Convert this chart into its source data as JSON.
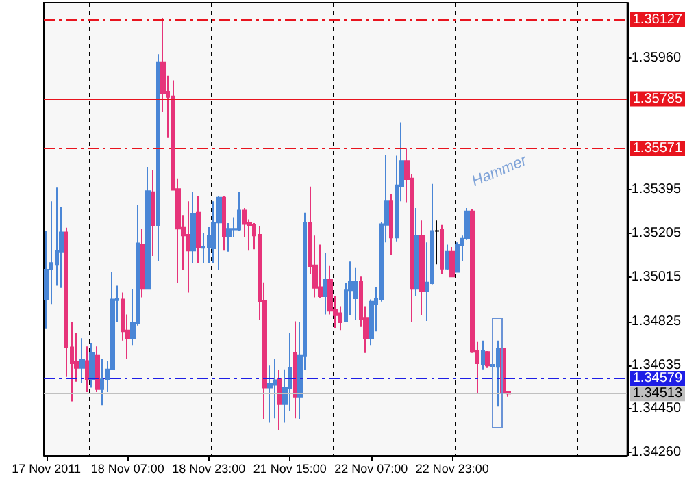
{
  "chart_data": {
    "type": "candlestick",
    "categories": [
      "17 Nov 2011",
      null,
      null,
      null,
      null,
      null,
      null,
      null,
      null,
      null,
      null,
      null,
      null,
      null,
      null,
      null,
      "18 Nov 07:00",
      null,
      null,
      null,
      null,
      null,
      null,
      null,
      null,
      null,
      null,
      null,
      null,
      null,
      null,
      null,
      "18 Nov 23:00",
      null,
      null,
      null,
      null,
      null,
      null,
      null,
      null,
      null,
      null,
      null,
      null,
      null,
      null,
      null,
      "21 Nov 15:00",
      null,
      null,
      null,
      null,
      null,
      null,
      null,
      null,
      null,
      null,
      null,
      null,
      null,
      null,
      null,
      "22 Nov 07:00",
      null,
      null,
      null,
      null,
      null,
      null,
      null,
      null,
      null,
      null,
      null,
      null,
      null,
      null,
      null,
      "22 Nov 23:00",
      null,
      null,
      null,
      null,
      null,
      null,
      null,
      null,
      null,
      null,
      null,
      null,
      null,
      null,
      null,
      null,
      null,
      null,
      null,
      null,
      null,
      null,
      null,
      null,
      null,
      null,
      null,
      null,
      null,
      null,
      null,
      null,
      null,
      null
    ],
    "ohlc": [
      [
        1.3492,
        1.35215,
        1.34792,
        1.35048
      ],
      [
        1.35048,
        1.35343,
        1.349,
        1.35077
      ],
      [
        1.35071,
        1.35402,
        1.34979,
        1.3513
      ],
      [
        1.35126,
        1.35318,
        1.34969,
        1.35209
      ],
      [
        1.35209,
        1.35229,
        1.34585,
        1.34713
      ],
      [
        1.34713,
        1.34821,
        1.3448,
        1.34644
      ],
      [
        1.3465,
        1.34776,
        1.34565,
        1.34624
      ],
      [
        1.34624,
        1.34752,
        1.34559,
        1.3466
      ],
      [
        1.34654,
        1.34717,
        1.3452,
        1.34575
      ],
      [
        1.34575,
        1.34732,
        1.34539,
        1.34689
      ],
      [
        1.34677,
        1.34717,
        1.3452,
        1.34532
      ],
      [
        1.34532,
        1.34664,
        1.34463,
        1.34575
      ],
      [
        1.34575,
        1.34654,
        1.3452,
        1.34618
      ],
      [
        1.34618,
        1.35038,
        1.34614,
        1.3492
      ],
      [
        1.34916,
        1.34979,
        1.34821,
        1.34924
      ],
      [
        1.3492,
        1.34949,
        1.34742,
        1.34782
      ],
      [
        1.34786,
        1.34855,
        1.34664,
        1.34752
      ],
      [
        1.34752,
        1.34965,
        1.34723,
        1.34821
      ],
      [
        1.34815,
        1.35327,
        1.34807,
        1.35162
      ],
      [
        1.35156,
        1.35225,
        1.34929,
        1.34965
      ],
      [
        1.34965,
        1.35491,
        1.34965,
        1.35387
      ],
      [
        1.35383,
        1.35477,
        1.35107,
        1.35239
      ],
      [
        1.35239,
        1.35978,
        1.35087,
        1.35944
      ],
      [
        1.35944,
        1.36135,
        1.35728,
        1.3581
      ],
      [
        1.35816,
        1.35885,
        1.35619,
        1.35793
      ],
      [
        1.35796,
        1.35865,
        1.35392,
        1.35392
      ],
      [
        1.35396,
        1.35442,
        1.34989,
        1.35225
      ],
      [
        1.35229,
        1.35284,
        1.35048,
        1.35195
      ],
      [
        1.35199,
        1.35343,
        1.34949,
        1.3513
      ],
      [
        1.3513,
        1.35383,
        1.35077,
        1.35288
      ],
      [
        1.35294,
        1.35367,
        1.35077,
        1.35146
      ],
      [
        1.35142,
        1.35205,
        1.35077,
        1.35146
      ],
      [
        1.35146,
        1.35231,
        1.35077,
        1.35195
      ],
      [
        1.3514,
        1.35343,
        1.35077,
        1.35251
      ],
      [
        1.35251,
        1.35367,
        1.35048,
        1.35359
      ],
      [
        1.35359,
        1.35367,
        1.3513,
        1.3519
      ],
      [
        1.3519,
        1.35249,
        1.35126,
        1.35225
      ],
      [
        1.35221,
        1.35274,
        1.3519,
        1.35225
      ],
      [
        1.35221,
        1.35383,
        1.35215,
        1.35304
      ],
      [
        1.35304,
        1.35314,
        1.3519,
        1.35245
      ],
      [
        1.35249,
        1.35265,
        1.3513,
        1.35239
      ],
      [
        1.35241,
        1.35249,
        1.35136,
        1.35195
      ],
      [
        1.35199,
        1.35235,
        1.34831,
        1.3491
      ],
      [
        1.34914,
        1.34993,
        1.34402,
        1.34539
      ],
      [
        1.34539,
        1.34634,
        1.34388,
        1.34555
      ],
      [
        1.34551,
        1.34664,
        1.34407,
        1.34571
      ],
      [
        1.34579,
        1.34614,
        1.34354,
        1.34467
      ],
      [
        1.34467,
        1.34618,
        1.34388,
        1.34539
      ],
      [
        1.34535,
        1.34776,
        1.34437,
        1.34624
      ],
      [
        1.34689,
        1.34825,
        1.34407,
        1.345
      ],
      [
        1.345,
        1.34821,
        1.34402,
        1.34677
      ],
      [
        1.34677,
        1.35294,
        1.34614,
        1.35251
      ],
      [
        1.35251,
        1.35406,
        1.35028,
        1.35063
      ],
      [
        1.35067,
        1.35195,
        1.34929,
        1.34969
      ],
      [
        1.34973,
        1.35156,
        1.34926,
        1.34933
      ],
      [
        1.34933,
        1.35121,
        1.34855,
        1.35004
      ],
      [
        1.35004,
        1.35067,
        1.34855,
        1.3487
      ],
      [
        1.34874,
        1.34933,
        1.34796,
        1.34851
      ],
      [
        1.34861,
        1.3489,
        1.34788,
        1.34821
      ],
      [
        1.34825,
        1.34989,
        1.34821,
        1.34959
      ],
      [
        1.34959,
        1.35083,
        1.34851,
        1.34998
      ],
      [
        1.34924,
        1.35058,
        1.34831,
        1.34998
      ],
      [
        1.34998,
        1.35018,
        1.34801,
        1.34835
      ],
      [
        1.34841,
        1.3489,
        1.34689,
        1.34752
      ],
      [
        1.34752,
        1.3492,
        1.34723,
        1.3491
      ],
      [
        1.349,
        1.34973,
        1.34782,
        1.34924
      ],
      [
        1.3492,
        1.35255,
        1.3491,
        1.35245
      ],
      [
        1.35241,
        1.35544,
        1.35166,
        1.35343
      ],
      [
        1.35343,
        1.35373,
        1.35111,
        1.35186
      ],
      [
        1.35186,
        1.3554,
        1.3517,
        1.35412
      ],
      [
        1.35408,
        1.35682,
        1.35343,
        1.35517
      ],
      [
        1.35517,
        1.3557,
        1.35339,
        1.35438
      ],
      [
        1.35442,
        1.35461,
        1.34821,
        1.34965
      ],
      [
        1.34965,
        1.35314,
        1.34933,
        1.35193
      ],
      [
        1.35193,
        1.3526,
        1.34851,
        1.34955
      ],
      [
        1.34955,
        1.35166,
        1.34827,
        1.34993
      ],
      [
        1.34989,
        1.35418,
        1.34985,
        1.35215
      ],
      [
        1.35215,
        1.3526,
        1.35071,
        1.35215
      ],
      [
        1.35221,
        1.35241,
        1.35028,
        1.35052
      ],
      [
        1.35052,
        1.35156,
        1.35048,
        1.35126
      ],
      [
        1.35126,
        1.35146,
        1.35016,
        1.35018
      ],
      [
        1.35038,
        1.35166,
        1.35038,
        1.35156
      ],
      [
        1.35152,
        1.35195,
        1.35087,
        1.35182
      ],
      [
        1.35182,
        1.35314,
        1.35176,
        1.353
      ],
      [
        1.353,
        1.35308,
        1.34689,
        1.34693
      ],
      [
        1.34697,
        1.34736,
        1.34516,
        1.34644
      ],
      [
        1.3464,
        1.34742,
        1.34618,
        1.34697
      ],
      [
        1.34693,
        1.34697,
        1.34624,
        1.34634
      ],
      [
        1.3463,
        1.34638,
        1.34628,
        1.34638
      ],
      [
        1.34628,
        1.34742,
        1.34457,
        1.34707
      ],
      [
        1.34707,
        1.34713,
        1.34512,
        1.3452
      ],
      [
        1.3452,
        1.3452,
        1.345,
        1.34513
      ],
      null,
      null,
      null,
      null,
      null,
      null,
      null,
      null,
      null,
      null,
      null,
      null,
      null,
      null,
      null,
      null,
      null,
      null,
      null,
      null,
      null,
      null,
      null
    ],
    "colors": [
      "#4a86d6",
      "#4a86d6",
      "#4a86d6",
      "#4a86d6",
      "#e6347a",
      "#e6347a",
      "#e6347a",
      "#4a86d6",
      "#e6347a",
      "#4a86d6",
      "#e6347a",
      "#4a86d6",
      "#4a86d6",
      "#4a86d6",
      "#4a86d6",
      "#e6347a",
      "#e6347a",
      "#4a86d6",
      "#4a86d6",
      "#e6347a",
      "#4a86d6",
      "#e6347a",
      "#4a86d6",
      "#e6347a",
      "#e6347a",
      "#e6347a",
      "#e6347a",
      "#e6347a",
      "#e6347a",
      "#4a86d6",
      "#e6347a",
      "#4a86d6",
      "#4a86d6",
      "#4a86d6",
      "#4a86d6",
      "#e6347a",
      "#4a86d6",
      "#4a86d6",
      "#4a86d6",
      "#e6347a",
      "#e6347a",
      "#e6347a",
      "#e6347a",
      "#e6347a",
      "#4a86d6",
      "#4a86d6",
      "#e6347a",
      "#4a86d6",
      "#4a86d6",
      "#e6347a",
      "#4a86d6",
      "#4a86d6",
      "#e6347a",
      "#e6347a",
      "#e6347a",
      "#4a86d6",
      "#e6347a",
      "#e6347a",
      "#e6347a",
      "#4a86d6",
      "#4a86d6",
      "#4a86d6",
      "#e6347a",
      "#e6347a",
      "#4a86d6",
      "#4a86d6",
      "#4a86d6",
      "#4a86d6",
      "#e6347a",
      "#4a86d6",
      "#4a86d6",
      "#e6347a",
      "#e6347a",
      "#4a86d6",
      "#e6347a",
      "#4a86d6",
      "#4a86d6",
      "#000000",
      "#e6347a",
      "#4a86d6",
      "#e6347a",
      "#4a86d6",
      "#4a86d6",
      "#4a86d6",
      "#e6347a",
      "#e6347a",
      "#4a86d6",
      "#e6347a",
      "#4a86d6",
      "#4a86d6",
      "#e6347a",
      "#e6347a",
      null,
      null,
      null,
      null,
      null,
      null,
      null,
      null,
      null,
      null,
      null,
      null,
      null,
      null,
      null,
      null,
      null,
      null,
      null,
      null,
      null,
      null,
      null
    ],
    "ylim": [
      1.34245,
      1.362
    ],
    "yticks": [
      {
        "value": 1.3426,
        "label": "1.34260"
      },
      {
        "value": 1.3445,
        "label": "1.34450"
      },
      {
        "value": 1.34635,
        "label": "1.34635"
      },
      {
        "value": 1.34825,
        "label": "1.34825"
      },
      {
        "value": 1.35015,
        "label": "1.35015"
      },
      {
        "value": 1.35205,
        "label": "1.35205"
      },
      {
        "value": 1.35395,
        "label": "1.35395"
      },
      {
        "value": 1.3596,
        "label": "1.35960"
      }
    ],
    "ref_lines": [
      {
        "axis": "y",
        "value": 1.36127,
        "label": "1.36127",
        "color": "#e8141e",
        "line_style": "dashed"
      },
      {
        "axis": "y",
        "value": 1.35785,
        "label": "1.35785",
        "color": "#e8141e",
        "line_style": "solid"
      },
      {
        "axis": "y",
        "value": 1.35571,
        "label": "1.35571",
        "color": "#e8141e",
        "line_style": "dashed"
      },
      {
        "axis": "y",
        "value": 1.34579,
        "label": "1.34579",
        "color": "#1e1ee6",
        "line_style": "dashed"
      },
      {
        "axis": "y",
        "value": 1.34513,
        "label": "1.34513",
        "color": "#c0c0c0",
        "line_style": "solid"
      }
    ],
    "annotations": [
      "Hammer"
    ],
    "grid": "x"
  }
}
